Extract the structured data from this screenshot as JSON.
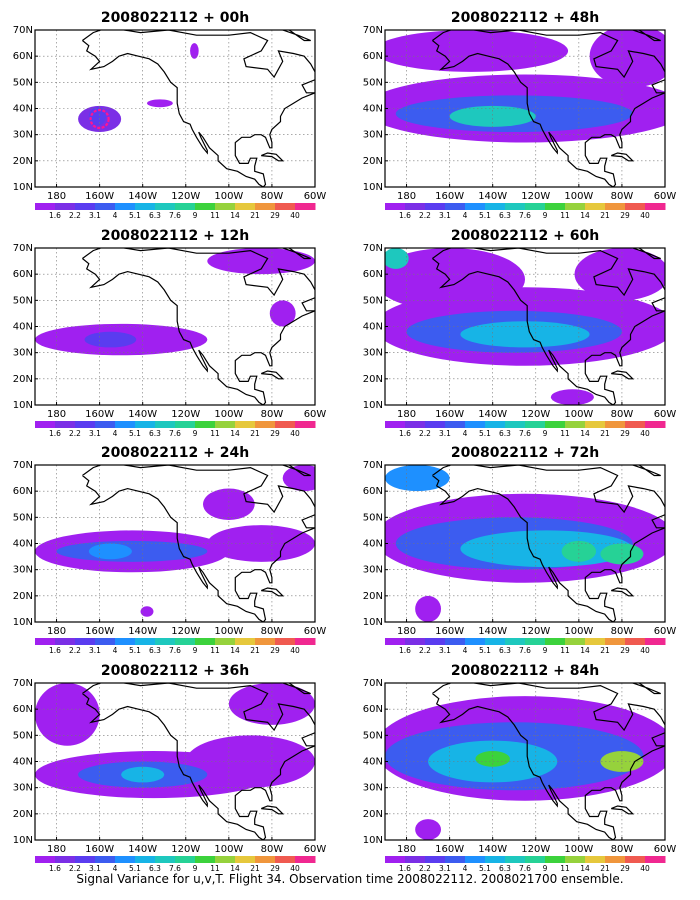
{
  "caption": "Signal Variance for u,v,T. Flight 34. Observation time 2008022112. 2008021700 ensemble.",
  "colorbar": {
    "labels": [
      "1.6",
      "2.2",
      "3.1",
      "4",
      "5.1",
      "6.3",
      "7.6",
      "9",
      "11",
      "14",
      "21",
      "29",
      "40"
    ],
    "colors": [
      "#a020f0",
      "#7b2fe6",
      "#5a3cf0",
      "#3c5cf0",
      "#1e90ff",
      "#17b4e6",
      "#1ec8be",
      "#26d296",
      "#3cd23c",
      "#96d23c",
      "#e6c83c",
      "#f0963c",
      "#f05a50",
      "#f02890"
    ]
  },
  "map": {
    "x_ticks": [
      "180",
      "160W",
      "140W",
      "120W",
      "100W",
      "80W",
      "60W"
    ],
    "y_ticks": [
      "70N",
      "60N",
      "50N",
      "40N",
      "30N",
      "20N",
      "10N"
    ]
  },
  "chart_data": [
    {
      "type": "heatmap",
      "title": "2008022112 + 00h",
      "xlim": [
        -190,
        -60
      ],
      "ylim": [
        10,
        70
      ],
      "grid": true,
      "features": [
        {
          "lon": -160,
          "lat": 36,
          "rx": 10,
          "ry": 5,
          "level": 1
        },
        {
          "lon": -161,
          "lat": 37,
          "rx": 4,
          "ry": 3.5,
          "level": 2
        },
        {
          "lon": -132,
          "lat": 42,
          "rx": 6,
          "ry": 1.5,
          "level": 0
        },
        {
          "lon": -116,
          "lat": 62,
          "rx": 2,
          "ry": 3,
          "level": 0
        }
      ],
      "marker": {
        "lon": -160,
        "lat": 36
      }
    },
    {
      "type": "heatmap",
      "title": "2008022112 + 48h",
      "xlim": [
        -190,
        -60
      ],
      "ylim": [
        10,
        70
      ],
      "grid": true,
      "features": [
        {
          "lon": -125,
          "lat": 40,
          "rx": 75,
          "ry": 13,
          "level": 0
        },
        {
          "lon": -150,
          "lat": 62,
          "rx": 45,
          "ry": 8,
          "level": 0
        },
        {
          "lon": -75,
          "lat": 60,
          "rx": 20,
          "ry": 12,
          "level": 0
        },
        {
          "lon": -130,
          "lat": 38,
          "rx": 55,
          "ry": 7,
          "level": 3
        },
        {
          "lon": -140,
          "lat": 37,
          "rx": 20,
          "ry": 4,
          "level": 6
        }
      ]
    },
    {
      "type": "heatmap",
      "title": "2008022112 + 12h",
      "xlim": [
        -190,
        -60
      ],
      "ylim": [
        10,
        70
      ],
      "grid": true,
      "features": [
        {
          "lon": -150,
          "lat": 35,
          "rx": 40,
          "ry": 6,
          "level": 0
        },
        {
          "lon": -155,
          "lat": 35,
          "rx": 12,
          "ry": 3,
          "level": 2
        },
        {
          "lon": -85,
          "lat": 65,
          "rx": 25,
          "ry": 5,
          "level": 0
        },
        {
          "lon": -75,
          "lat": 45,
          "rx": 6,
          "ry": 5,
          "level": 0
        }
      ]
    },
    {
      "type": "heatmap",
      "title": "2008022112 + 60h",
      "xlim": [
        -190,
        -60
      ],
      "ylim": [
        10,
        70
      ],
      "grid": true,
      "features": [
        {
          "lon": -125,
          "lat": 40,
          "rx": 70,
          "ry": 15,
          "level": 0
        },
        {
          "lon": -160,
          "lat": 58,
          "rx": 35,
          "ry": 12,
          "level": 0
        },
        {
          "lon": -80,
          "lat": 60,
          "rx": 22,
          "ry": 10,
          "level": 0
        },
        {
          "lon": -130,
          "lat": 38,
          "rx": 50,
          "ry": 8,
          "level": 3
        },
        {
          "lon": -125,
          "lat": 37,
          "rx": 30,
          "ry": 5,
          "level": 5
        },
        {
          "lon": -185,
          "lat": 66,
          "rx": 6,
          "ry": 4,
          "level": 6
        },
        {
          "lon": -103,
          "lat": 13,
          "rx": 10,
          "ry": 3,
          "level": 0
        }
      ]
    },
    {
      "type": "heatmap",
      "title": "2008022112 + 24h",
      "xlim": [
        -190,
        -60
      ],
      "ylim": [
        10,
        70
      ],
      "grid": true,
      "features": [
        {
          "lon": -145,
          "lat": 37,
          "rx": 45,
          "ry": 8,
          "level": 0
        },
        {
          "lon": -85,
          "lat": 40,
          "rx": 25,
          "ry": 7,
          "level": 0
        },
        {
          "lon": -100,
          "lat": 55,
          "rx": 12,
          "ry": 6,
          "level": 0
        },
        {
          "lon": -65,
          "lat": 65,
          "rx": 10,
          "ry": 5,
          "level": 0
        },
        {
          "lon": -145,
          "lat": 37,
          "rx": 35,
          "ry": 4,
          "level": 3
        },
        {
          "lon": -155,
          "lat": 37,
          "rx": 10,
          "ry": 3,
          "level": 4
        },
        {
          "lon": -138,
          "lat": 14,
          "rx": 3,
          "ry": 2,
          "level": 0
        }
      ]
    },
    {
      "type": "heatmap",
      "title": "2008022112 + 72h",
      "xlim": [
        -190,
        -60
      ],
      "ylim": [
        10,
        70
      ],
      "grid": true,
      "features": [
        {
          "lon": -125,
          "lat": 42,
          "rx": 70,
          "ry": 17,
          "level": 0
        },
        {
          "lon": -130,
          "lat": 40,
          "rx": 55,
          "ry": 10,
          "level": 3
        },
        {
          "lon": -115,
          "lat": 38,
          "rx": 40,
          "ry": 7,
          "level": 5
        },
        {
          "lon": -100,
          "lat": 37,
          "rx": 8,
          "ry": 4,
          "level": 7
        },
        {
          "lon": -80,
          "lat": 36,
          "rx": 10,
          "ry": 4,
          "level": 7
        },
        {
          "lon": -175,
          "lat": 65,
          "rx": 15,
          "ry": 5,
          "level": 4
        },
        {
          "lon": -170,
          "lat": 15,
          "rx": 6,
          "ry": 5,
          "level": 0
        }
      ]
    },
    {
      "type": "heatmap",
      "title": "2008022112 + 36h",
      "xlim": [
        -190,
        -60
      ],
      "ylim": [
        10,
        70
      ],
      "grid": true,
      "features": [
        {
          "lon": -135,
          "lat": 35,
          "rx": 55,
          "ry": 9,
          "level": 0
        },
        {
          "lon": -175,
          "lat": 58,
          "rx": 15,
          "ry": 12,
          "level": 0
        },
        {
          "lon": -90,
          "lat": 40,
          "rx": 30,
          "ry": 10,
          "level": 0
        },
        {
          "lon": -80,
          "lat": 62,
          "rx": 20,
          "ry": 8,
          "level": 0
        },
        {
          "lon": -140,
          "lat": 35,
          "rx": 30,
          "ry": 5,
          "level": 3
        },
        {
          "lon": -140,
          "lat": 35,
          "rx": 10,
          "ry": 3,
          "level": 5
        }
      ]
    },
    {
      "type": "heatmap",
      "title": "2008022112 + 84h",
      "xlim": [
        -190,
        -60
      ],
      "ylim": [
        10,
        70
      ],
      "grid": true,
      "features": [
        {
          "lon": -125,
          "lat": 45,
          "rx": 70,
          "ry": 20,
          "level": 0
        },
        {
          "lon": -130,
          "lat": 42,
          "rx": 60,
          "ry": 13,
          "level": 3
        },
        {
          "lon": -140,
          "lat": 40,
          "rx": 30,
          "ry": 8,
          "level": 5
        },
        {
          "lon": -140,
          "lat": 41,
          "rx": 8,
          "ry": 3,
          "level": 8
        },
        {
          "lon": -80,
          "lat": 40,
          "rx": 10,
          "ry": 4,
          "level": 9
        },
        {
          "lon": -170,
          "lat": 14,
          "rx": 6,
          "ry": 4,
          "level": 0
        }
      ]
    }
  ]
}
